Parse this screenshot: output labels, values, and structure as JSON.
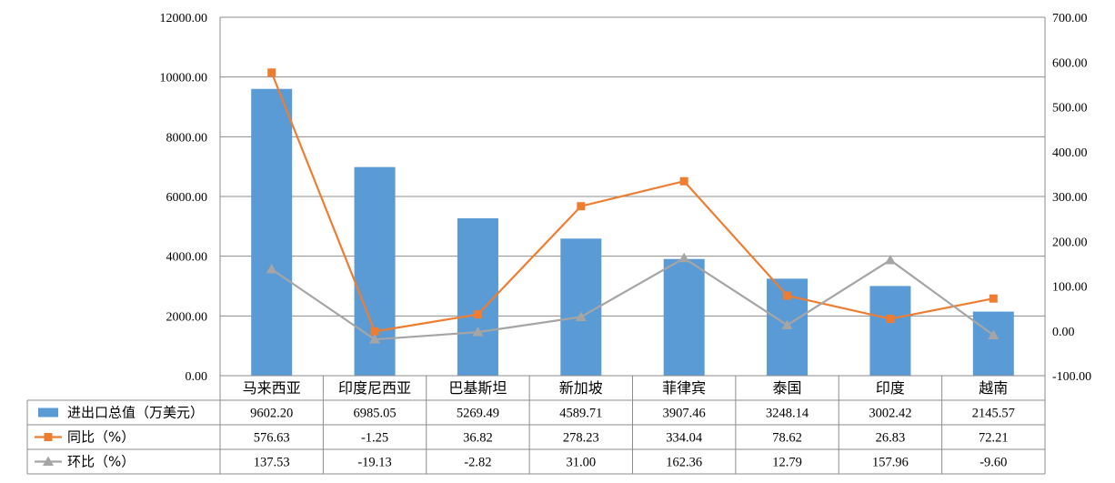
{
  "chart_data": {
    "type": "bar",
    "categories": [
      "马来西亚",
      "印度尼西亚",
      "巴基斯坦",
      "新加坡",
      "菲律宾",
      "泰国",
      "印度",
      "越南"
    ],
    "series": [
      {
        "name": "进出口总值（万美元）",
        "kind": "bar",
        "axis": "left",
        "color": "#5b9bd5",
        "values": [
          9602.2,
          6985.05,
          5269.49,
          4589.71,
          3907.46,
          3248.14,
          3002.42,
          2145.57
        ],
        "labels": [
          "9602.20",
          "6985.05",
          "5269.49",
          "4589.71",
          "3907.46",
          "3248.14",
          "3002.42",
          "2145.57"
        ]
      },
      {
        "name": "同比（%）",
        "kind": "line",
        "marker": "square",
        "axis": "right",
        "color": "#ed7d31",
        "values": [
          576.63,
          -1.25,
          36.82,
          278.23,
          334.04,
          78.62,
          26.83,
          72.21
        ],
        "labels": [
          "576.63",
          "-1.25",
          "36.82",
          "278.23",
          "334.04",
          "78.62",
          "26.83",
          "72.21"
        ]
      },
      {
        "name": "环比（%）",
        "kind": "line",
        "marker": "triangle",
        "axis": "right",
        "color": "#a5a5a5",
        "values": [
          137.53,
          -19.13,
          -2.82,
          31.0,
          162.36,
          12.79,
          157.96,
          -9.6
        ],
        "labels": [
          "137.53",
          "-19.13",
          "-2.82",
          "31.00",
          "162.36",
          "12.79",
          "157.96",
          "-9.60"
        ]
      }
    ],
    "ylim_left": [
      0,
      12000
    ],
    "ylim_right": [
      -100,
      700
    ],
    "left_ticks": [
      "0.00",
      "2000.00",
      "4000.00",
      "6000.00",
      "8000.00",
      "10000.00",
      "12000.00"
    ],
    "right_ticks": [
      "-100.00",
      "0.00",
      "100.00",
      "200.00",
      "300.00",
      "400.00",
      "500.00",
      "600.00",
      "700.00"
    ],
    "grid": true,
    "legend": "data-table"
  }
}
